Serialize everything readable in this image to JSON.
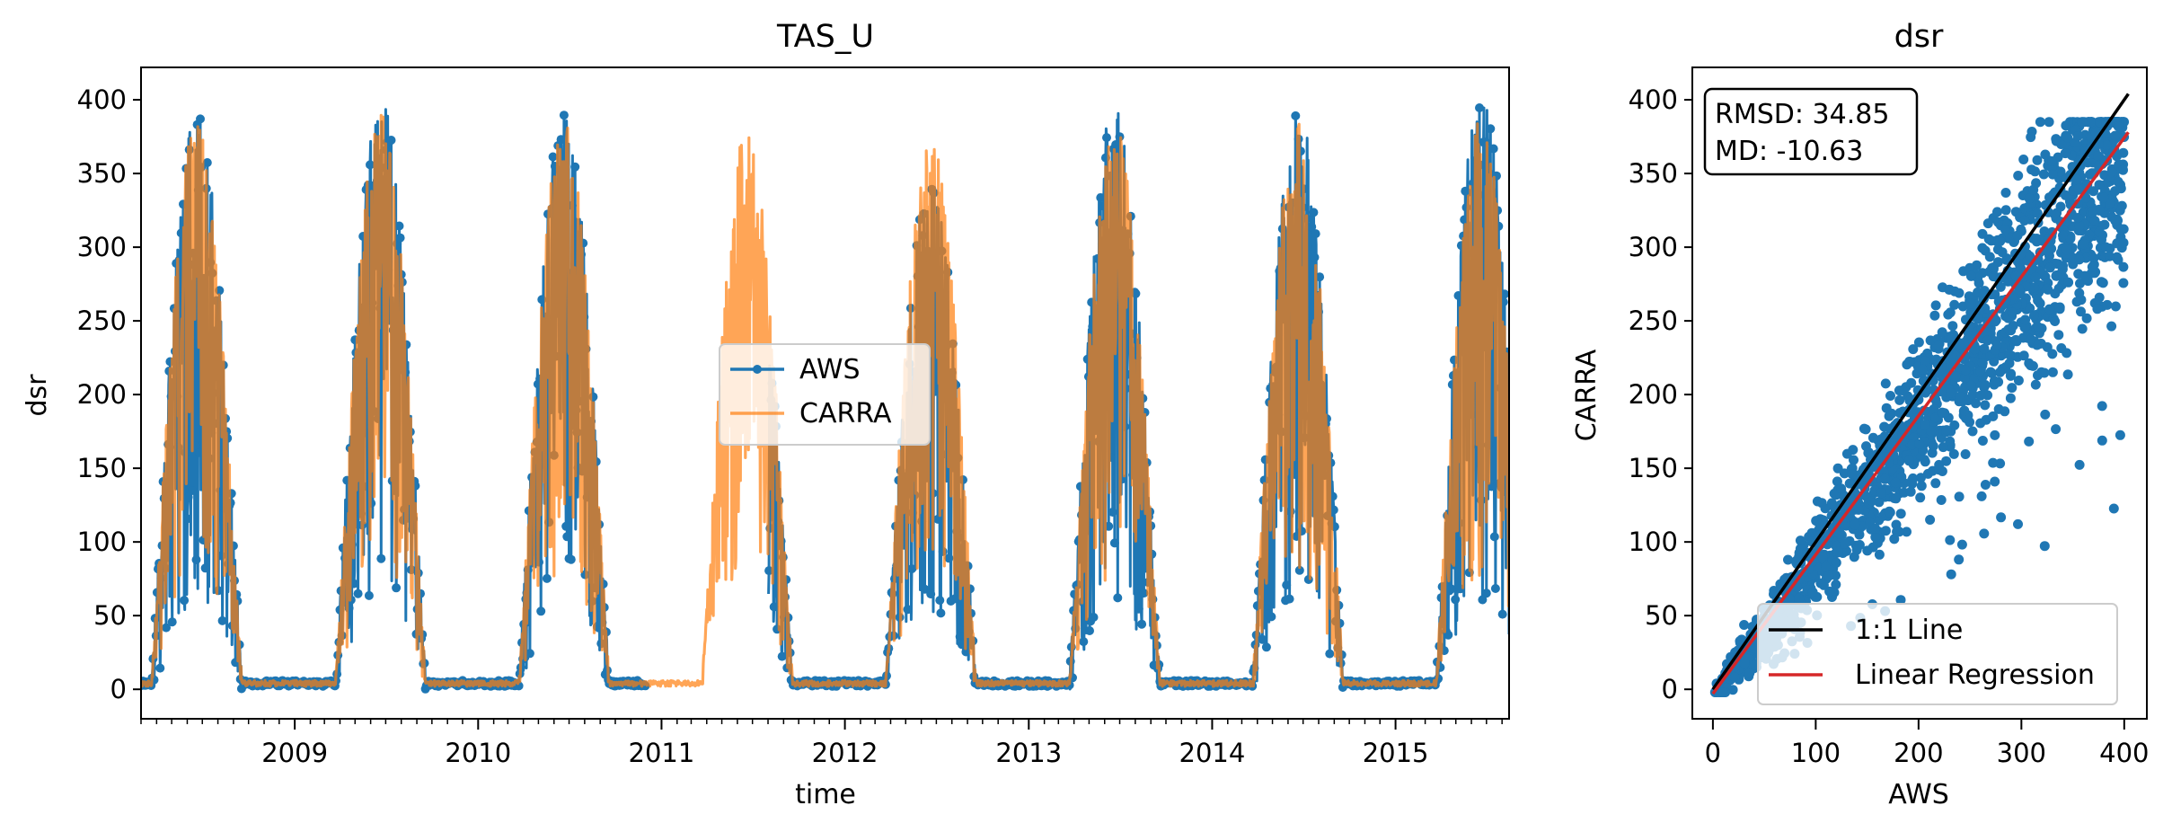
{
  "chart_data": [
    {
      "type": "line",
      "title": "TAS_U",
      "xlabel": "time",
      "ylabel": "dsr",
      "x_ticks": [
        "2009",
        "2010",
        "2011",
        "2012",
        "2013",
        "2014",
        "2015"
      ],
      "y_ticks": [
        "0",
        "50",
        "100",
        "150",
        "200",
        "250",
        "300",
        "350",
        "400"
      ],
      "xlim": [
        "2008-03-01",
        "2015-08-15"
      ],
      "ylim": [
        -20,
        422
      ],
      "legend": {
        "placement": "center",
        "entries": [
          "AWS",
          "CARRA"
        ]
      },
      "grid": false,
      "series": [
        {
          "name": "AWS",
          "style": "line with dot markers",
          "color": "#1f77b4",
          "seasonal_peaks": [
            {
              "date": "2008-06-15",
              "value": 390
            },
            {
              "date": "2009-06-20",
              "value": 400
            },
            {
              "date": "2010-06-18",
              "value": 392
            },
            {
              "date": "2012-06-10",
              "value": 345
            },
            {
              "date": "2013-06-18",
              "value": 398
            },
            {
              "date": "2014-06-15",
              "value": 396
            },
            {
              "date": "2015-06-15",
              "value": 404
            }
          ],
          "gaps": [
            [
              "2010-12-01",
              "2011-08-01"
            ]
          ]
        },
        {
          "name": "CARRA",
          "style": "line",
          "color": "#ff7f0e",
          "seasonal_peaks": [
            {
              "date": "2008-06-15",
              "value": 385
            },
            {
              "date": "2009-06-20",
              "value": 390
            },
            {
              "date": "2010-06-18",
              "value": 385
            },
            {
              "date": "2011-06-15",
              "value": 380
            },
            {
              "date": "2012-06-15",
              "value": 378
            },
            {
              "date": "2013-06-18",
              "value": 385
            },
            {
              "date": "2014-06-15",
              "value": 385
            },
            {
              "date": "2015-06-15",
              "value": 385
            }
          ]
        }
      ]
    },
    {
      "type": "scatter",
      "title": "dsr",
      "xlabel": "AWS",
      "ylabel": "CARRA",
      "x_ticks": [
        "0",
        "100",
        "200",
        "300",
        "400"
      ],
      "y_ticks": [
        "0",
        "50",
        "100",
        "150",
        "200",
        "250",
        "300",
        "350",
        "400"
      ],
      "xlim": [
        -20,
        422
      ],
      "ylim": [
        -20,
        422
      ],
      "annotation": [
        "RMSD: 34.85",
        "MD: -10.63"
      ],
      "annotation_placement": "top-left",
      "legend": {
        "placement": "bottom-right",
        "entries": [
          "1:1 Line",
          "Linear Regression"
        ]
      },
      "points_color": "#1f77b4",
      "lines": [
        {
          "name": "1:1 Line",
          "color": "#000000",
          "from": [
            0,
            0
          ],
          "to": [
            404,
            404
          ]
        },
        {
          "name": "Linear Regression",
          "color": "#d62728",
          "from": [
            0,
            -3
          ],
          "to": [
            404,
            378
          ]
        }
      ]
    }
  ]
}
